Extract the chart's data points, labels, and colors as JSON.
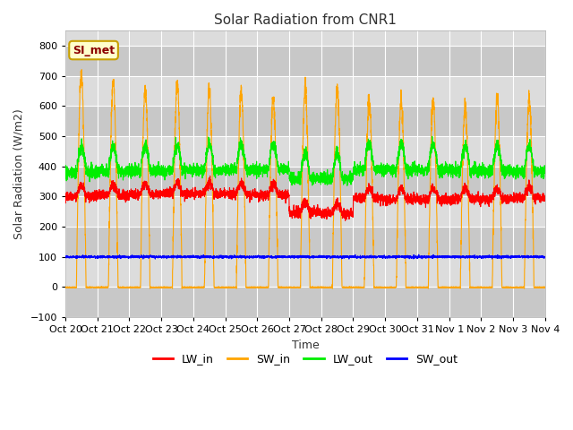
{
  "title": "Solar Radiation from CNR1",
  "xlabel": "Time",
  "ylabel": "Solar Radiation (W/m2)",
  "ylim": [
    -100,
    850
  ],
  "yticks": [
    -100,
    0,
    100,
    200,
    300,
    400,
    500,
    600,
    700,
    800
  ],
  "annotation_text": "SI_met",
  "annotation_color": "#8B0000",
  "annotation_bg": "#FFFFCC",
  "annotation_border": "#C8A000",
  "colors": {
    "LW_in": "#FF0000",
    "SW_in": "#FFA500",
    "LW_out": "#00EE00",
    "SW_out": "#0000FF"
  },
  "series_labels": [
    "LW_in",
    "SW_in",
    "LW_out",
    "SW_out"
  ],
  "fig_bg_color": "#FFFFFF",
  "plot_bg_light": "#DCDCDC",
  "plot_bg_dark": "#C8C8C8",
  "n_days": 15,
  "points_per_day": 288,
  "x_tick_labels": [
    "Oct 20",
    "Oct 21",
    "Oct 22",
    "Oct 23",
    "Oct 24",
    "Oct 25",
    "Oct 26",
    "Oct 27",
    "Oct 28",
    "Oct 29",
    "Oct 30",
    "Oct 31",
    "Nov 1",
    "Nov 2",
    "Nov 3",
    "Nov 4"
  ],
  "grid_color": "#FFFFFF",
  "linewidth": 0.8,
  "peak_vals": [
    710,
    675,
    660,
    670,
    650,
    645,
    620,
    655,
    660,
    620,
    610,
    615,
    600,
    625,
    625
  ]
}
